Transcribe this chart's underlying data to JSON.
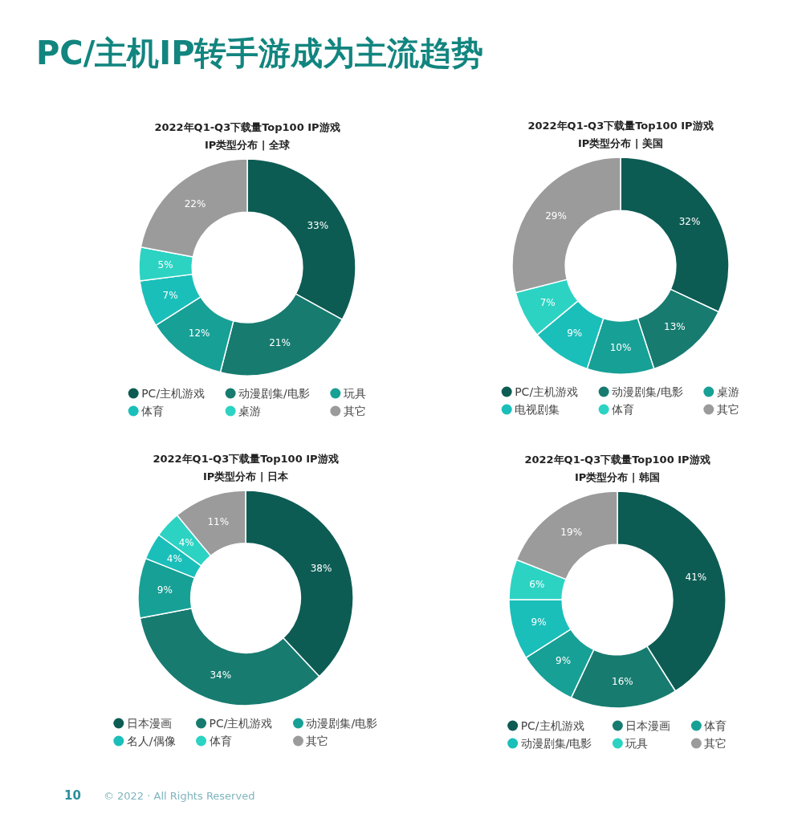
{
  "chart_data": [
    {
      "type": "other",
      "title": "PC/主机IP转手游成为主流趋势",
      "annotations": [
        "10",
        "© 2022 · All Rights Reserved"
      ]
    },
    {
      "type": "donut",
      "title": "2022年Q1-Q3下载量Top100 IP游戏\nIP类型分布 | 全球",
      "categories": [
        "PC/主机游戏",
        "动漫剧集/电影",
        "玩具",
        "体育",
        "桌游",
        "其它"
      ],
      "values": [
        33,
        21,
        12,
        7,
        5,
        22
      ],
      "colors": [
        "#0d5c54",
        "#177b70",
        "#17a096",
        "#1abfba",
        "#2cd3c3",
        "#9b9b9b"
      ],
      "value_labels": [
        "33%",
        "21%",
        "12%",
        "7%",
        "5%",
        "22%"
      ],
      "legend": "bottom"
    },
    {
      "type": "donut",
      "title": "2022年Q1-Q3下载量Top100 IP游戏\nIP类型分布 | 美国",
      "categories": [
        "PC/主机游戏",
        "动漫剧集/电影",
        "桌游",
        "电视剧集",
        "体育",
        "其它"
      ],
      "values": [
        32,
        13,
        10,
        9,
        7,
        29
      ],
      "colors": [
        "#0d5c54",
        "#177b70",
        "#17a096",
        "#1abfba",
        "#2cd3c3",
        "#9b9b9b"
      ],
      "value_labels": [
        "32%",
        "13%",
        "10%",
        "9%",
        "7%",
        "29%"
      ],
      "legend": "bottom"
    },
    {
      "type": "donut",
      "title": "2022年Q1-Q3下载量Top100 IP游戏\nIP类型分布 | 日本",
      "categories": [
        "日本漫画",
        "PC/主机游戏",
        "动漫剧集/电影",
        "名人/偶像",
        "体育",
        "其它"
      ],
      "values": [
        38,
        34,
        9,
        4,
        4,
        11
      ],
      "colors": [
        "#0d5c54",
        "#177b70",
        "#17a096",
        "#1abfba",
        "#2cd3c3",
        "#9b9b9b"
      ],
      "value_labels": [
        "38%",
        "34%",
        "9%",
        "4%",
        "4%",
        "11%"
      ],
      "legend": "bottom"
    },
    {
      "type": "donut",
      "title": "2022年Q1-Q3下载量Top100 IP游戏\nIP类型分布 | 韩国",
      "categories": [
        "PC/主机游戏",
        "日本漫画",
        "体育",
        "动漫剧集/电影",
        "玩具",
        "其它"
      ],
      "values": [
        41,
        16,
        9,
        9,
        6,
        19
      ],
      "colors": [
        "#0d5c54",
        "#177b70",
        "#17a096",
        "#1abfba",
        "#2cd3c3",
        "#9b9b9b"
      ],
      "value_labels": [
        "41%",
        "16%",
        "9%",
        "9%",
        "6%",
        "19%"
      ],
      "legend": "bottom"
    }
  ]
}
